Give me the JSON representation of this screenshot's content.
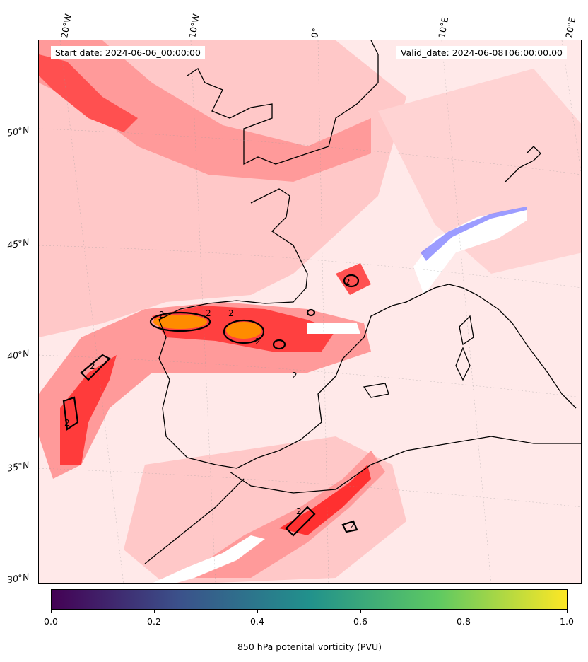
{
  "header": {
    "start_date": "Start date: 2024-06-06_00:00:00",
    "valid_date": "Valid_date: 2024-06-08T06:00:00.00"
  },
  "axes": {
    "lon_labels": [
      "20°W",
      "10°W",
      "0°",
      "10°E",
      "20°E"
    ],
    "lat_labels": [
      "50°N",
      "45°N",
      "40°N",
      "35°N",
      "30°N"
    ]
  },
  "contour_labels": [
    "2",
    "2",
    "2",
    "2",
    "2",
    "2",
    "2",
    "2",
    "2",
    "2"
  ],
  "colorbar": {
    "title": "850 hPa potenital vorticity (PVU)",
    "ticks": [
      "0.0",
      "0.2",
      "0.4",
      "0.6",
      "0.8",
      "1.0"
    ],
    "colors": [
      "#440154",
      "#3b528b",
      "#21918c",
      "#5ec962",
      "#fde725"
    ]
  },
  "palette": {
    "background": "#ffe9e9",
    "light_red": "#ffc4c4",
    "mid_red": "#ff9a9a",
    "strong_red": "#ff5a5a",
    "max_red": "#ff0000",
    "orange": "#ff8c00",
    "blue": "#5555ff"
  }
}
